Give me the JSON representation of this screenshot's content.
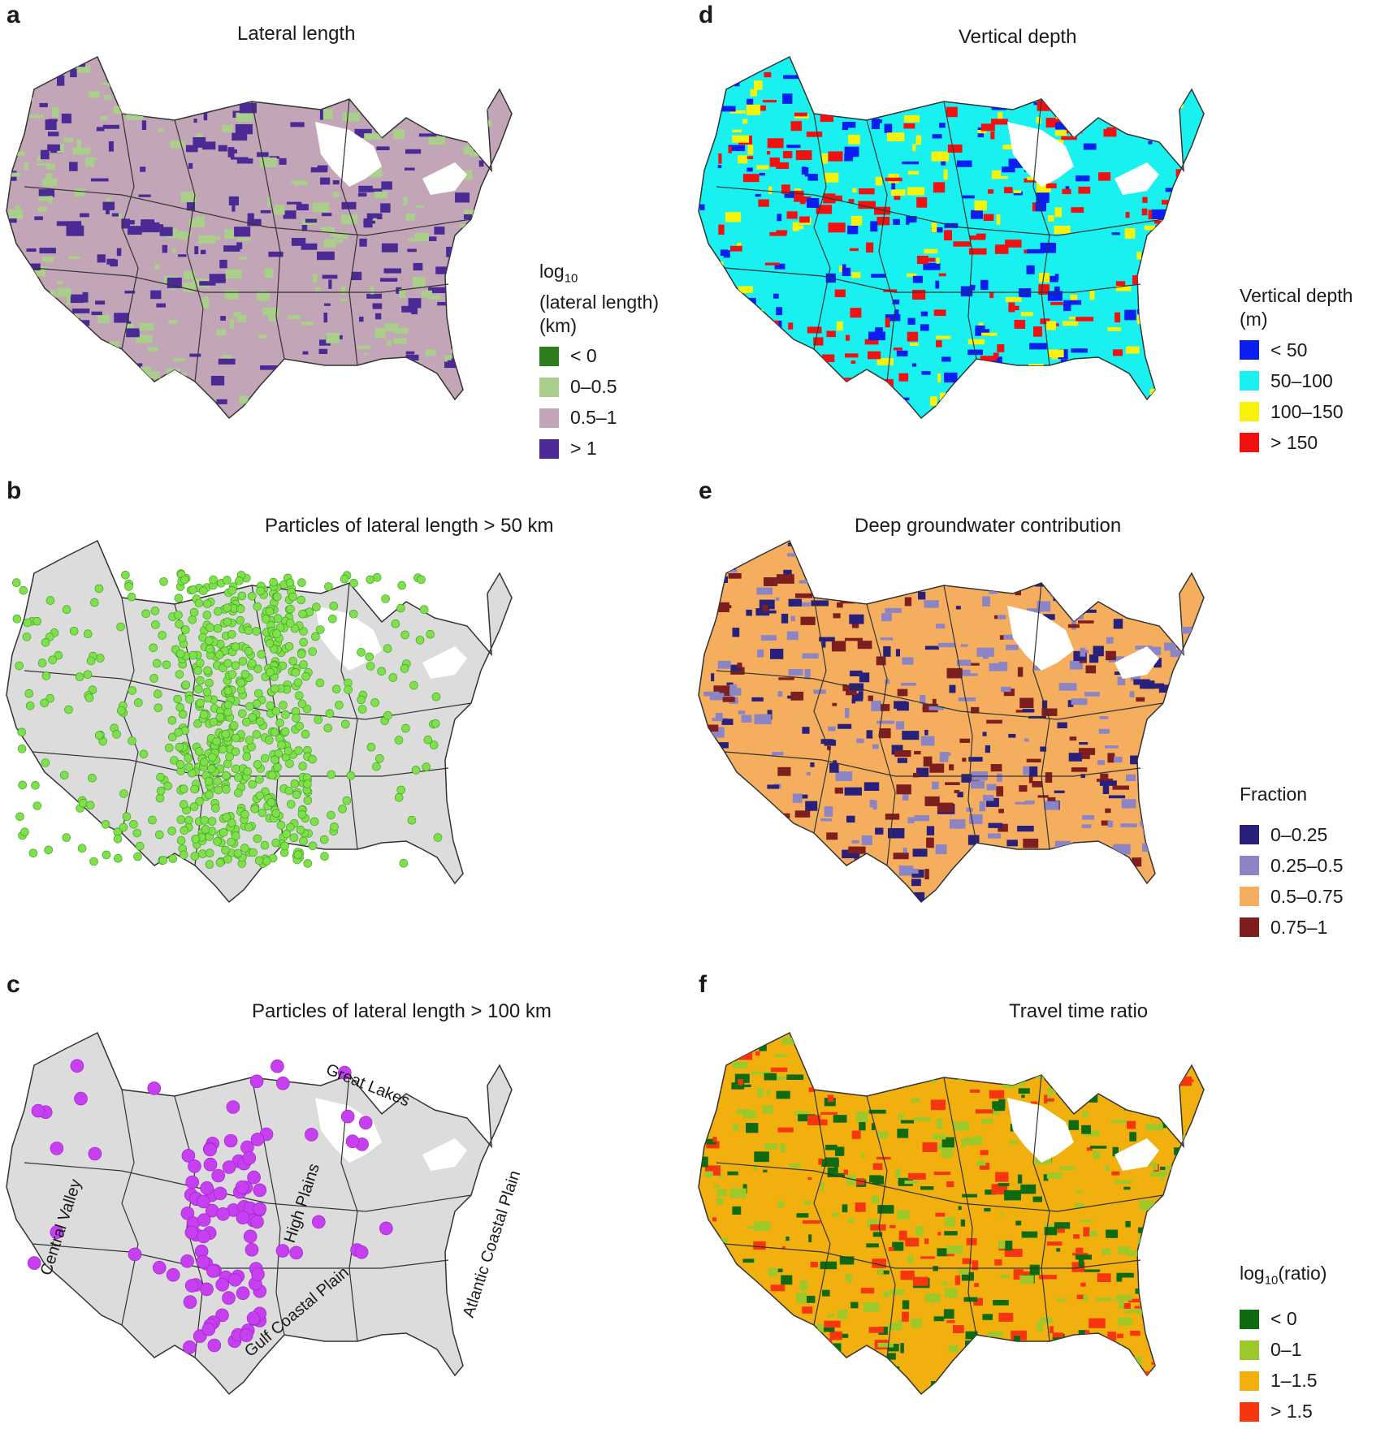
{
  "panels": [
    {
      "letter": "a",
      "title": "Lateral length",
      "legend_title_lines": [
        "(lateral length)",
        "(km)"
      ],
      "legend_log_prefix": "log",
      "legend_log_sub": "10",
      "legend": [
        {
          "label": "< 0",
          "color": "#2e7d1f"
        },
        {
          "label": "0–0.5",
          "color": "#a9cf8a"
        },
        {
          "label": "0.5–1",
          "color": "#c2a6b7"
        },
        {
          "label": "> 1",
          "color": "#4b2a96"
        }
      ],
      "map_base_color": "#c2a6b7",
      "map_patch_colors": [
        "#a9cf8a",
        "#4b2a96"
      ]
    },
    {
      "letter": "b",
      "title": "Particles of lateral length > 50 km",
      "map_base_color": "#dcdcdc",
      "point_color": "#7ee04a"
    },
    {
      "letter": "c",
      "title": "Particles of lateral length > 100 km",
      "map_base_color": "#dcdcdc",
      "point_color": "#c63ff0",
      "region_labels": [
        "Central Valley",
        "High Plains",
        "Great Lakes",
        "Gulf Coastal Plain",
        "Atlantic Coastal Plain"
      ]
    },
    {
      "letter": "d",
      "title": "Vertical depth",
      "legend_title_lines": [
        "Vertical depth",
        "(m)"
      ],
      "legend": [
        {
          "label": "< 50",
          "color": "#0a1ef0"
        },
        {
          "label": "50–100",
          "color": "#19f0f0"
        },
        {
          "label": "100–150",
          "color": "#f7f20a"
        },
        {
          "label": "> 150",
          "color": "#f21010"
        }
      ],
      "map_base_color": "#19f0f0",
      "map_patch_colors": [
        "#0a1ef0",
        "#f7f20a",
        "#f21010"
      ]
    },
    {
      "letter": "e",
      "title": "Deep groundwater contribution",
      "legend_title_lines": [
        "Fraction"
      ],
      "legend": [
        {
          "label": "0–0.25",
          "color": "#28207a"
        },
        {
          "label": "0.25–0.5",
          "color": "#8c84c4"
        },
        {
          "label": "0.5–0.75",
          "color": "#f5ae5e"
        },
        {
          "label": "0.75–1",
          "color": "#7e1e1e"
        }
      ],
      "map_base_color": "#f5ae5e",
      "map_patch_colors": [
        "#8c84c4",
        "#28207a",
        "#7e1e1e"
      ]
    },
    {
      "letter": "f",
      "title": "Travel time ratio",
      "legend_title_lines": [
        "(ratio)"
      ],
      "legend_log_prefix": "log",
      "legend_log_sub": "10",
      "legend": [
        {
          "label": "< 0",
          "color": "#0f6b0f"
        },
        {
          "label": "0–1",
          "color": "#9cc82a"
        },
        {
          "label": "1–1.5",
          "color": "#f1b00e"
        },
        {
          "label": "> 1.5",
          "color": "#f5360f"
        }
      ],
      "map_base_color": "#f1b00e",
      "map_patch_colors": [
        "#9cc82a",
        "#0f6b0f",
        "#f5360f"
      ]
    }
  ]
}
